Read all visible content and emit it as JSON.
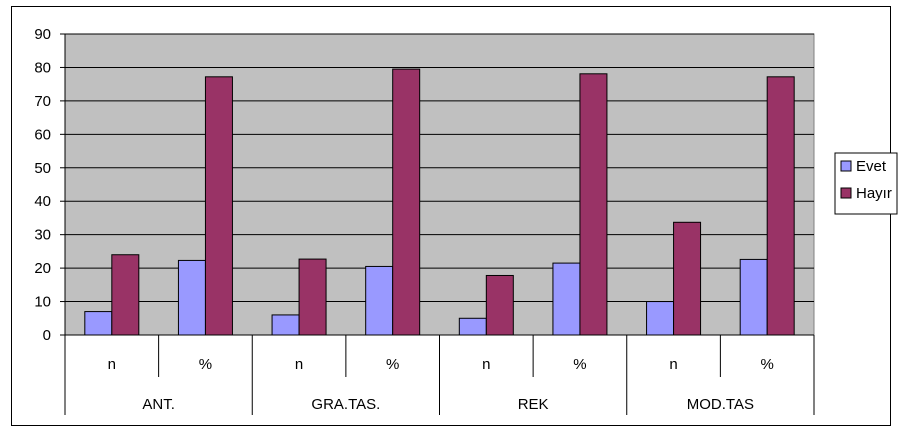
{
  "chart_data": {
    "type": "bar",
    "groups": [
      "ANT.",
      "GRA.TAS.",
      "REK",
      "MOD.TAS"
    ],
    "subcategories": [
      "n",
      "%"
    ],
    "categories": [
      "n",
      "%",
      "n",
      "%",
      "n",
      "%",
      "n",
      "%"
    ],
    "series": [
      {
        "name": "Evet",
        "color": "#9999ff",
        "values": [
          7,
          22.3,
          6,
          20.5,
          5,
          21.5,
          10,
          22.6
        ]
      },
      {
        "name": "Hayır",
        "color": "#993366",
        "values": [
          24,
          77.2,
          22.7,
          79.5,
          17.8,
          78.1,
          33.7,
          77.2
        ]
      }
    ],
    "ylim": [
      0,
      90
    ],
    "yticks": [
      "0",
      "10",
      "20",
      "30",
      "40",
      "50",
      "60",
      "70",
      "80",
      "90"
    ],
    "plot_background": "#c0c0c0",
    "grid": true,
    "legend_position": "right",
    "title": "",
    "xlabel": "",
    "ylabel": ""
  }
}
